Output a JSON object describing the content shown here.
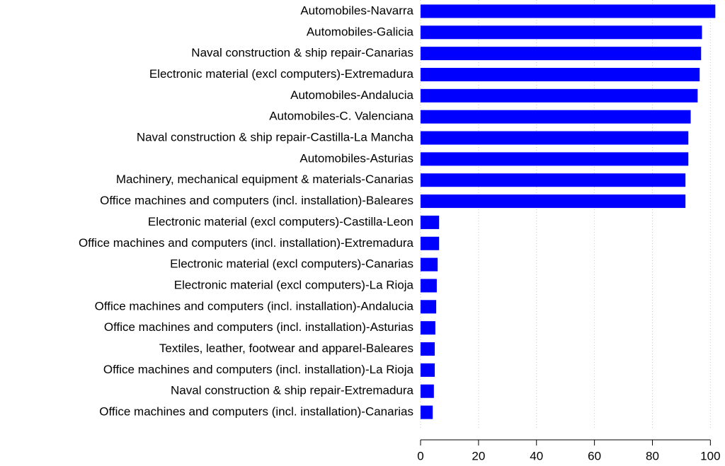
{
  "chart_data": {
    "type": "barh",
    "categories": [
      "Automobiles-Navarra",
      "Automobiles-Galicia",
      "Naval construction & ship repair-Canarias",
      "Electronic material (excl computers)-Extremadura",
      "Automobiles-Andalucia",
      "Automobiles-C. Valenciana",
      "Naval construction & ship repair-Castilla-La Mancha",
      "Automobiles-Asturias",
      "Machinery, mechanical equipment & materials-Canarias",
      "Office machines and computers (incl. installation)-Baleares",
      "Electronic material (excl computers)-Castilla-Leon",
      "Office machines and computers (incl. installation)-Extremadura",
      "Electronic material (excl computers)-Canarias",
      "Electronic material (excl computers)-La Rioja",
      "Office machines and computers (incl. installation)-Andalucia",
      "Office machines and computers (incl. installation)-Asturias",
      "Textiles, leather, footwear and apparel-Baleares",
      "Office machines and computers (incl. installation)-La Rioja",
      "Naval construction & ship repair-Extremadura",
      "Office machines and computers (incl. installation)-Canarias"
    ],
    "values": [
      101.7,
      97.1,
      96.8,
      96.3,
      95.6,
      93.2,
      92.4,
      92.4,
      91.4,
      91.4,
      6.4,
      6.4,
      5.9,
      5.6,
      5.4,
      5.1,
      4.9,
      4.9,
      4.6,
      4.2
    ],
    "color": "#0000ff",
    "xlim": [
      0,
      102.6
    ],
    "xticks": [
      0,
      20,
      40,
      60,
      80,
      100
    ],
    "grid": true
  }
}
